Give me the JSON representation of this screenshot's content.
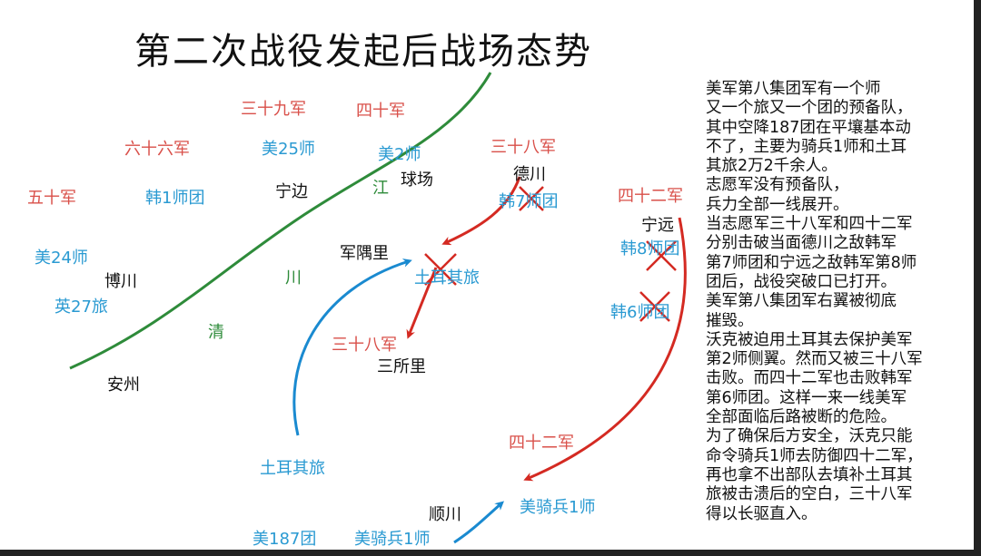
{
  "title": "第二次战役发起后战场态势",
  "colors": {
    "chinese_army": "#d9504a",
    "un_forces": "#2a9ad2",
    "river": "#2e8b3a",
    "red_arrow": "#d42a22",
    "blue_arrow": "#1a8ad0"
  },
  "labels": {
    "army39": "三十九军",
    "army40": "四十军",
    "army66": "六十六军",
    "army50": "五十军",
    "army38_north": "三十八军",
    "army42_north": "四十二军",
    "army38_south": "三十八军",
    "army42_south": "四十二军",
    "us25": "美25师",
    "us2": "美2师",
    "rok1": "韩1师团",
    "us24": "美24师",
    "uk27": "英27旅",
    "rok7": "韩7师团",
    "rok8": "韩8师团",
    "rok6": "韩6师团",
    "turkey_north": "土耳其旅",
    "turkey_south": "土耳其旅",
    "uscav1_east": "美骑兵1师",
    "uscav1_south": "美骑兵1师",
    "us187": "美187团",
    "ningbian": "宁边",
    "qiuchang": "球场",
    "deokcheon": "德川",
    "ningyuan": "宁远",
    "junyuli": "军隅里",
    "bochuan": "博川",
    "anzhou": "安州",
    "sansuoli": "三所里",
    "shunchuan": "顺川",
    "river_1": "清",
    "river_2": "川",
    "river_3": "江"
  },
  "notes": [
    "美军第八集团军有一个师",
    "又一个旅又一个团的预备队，",
    "其中空降187团在平壤基本动",
    "不了，主要为骑兵1师和土耳",
    "其旅2万2千余人。",
    "志愿军没有预备队，",
    "兵力全部一线展开。",
    "当志愿军三十八军和四十二军",
    "分别击破当面德川之敌韩军",
    "第7师团和宁远之敌韩军第8师",
    "团后，战役突破口已打开。",
    "美军第八集团军右翼被彻底",
    "摧毁。",
    "沃克被迫用土耳其去保护美军",
    "第2师侧翼。然而又被三十八军",
    "击败。而四十二军也击败韩军",
    "第6师团。这样一来一线美军",
    "全部面临后路被断的危险。",
    "为了确保后方安全，沃克只能",
    "命令骑兵1师去防御四十二军，",
    "再也拿不出部队去填补土耳其",
    "旅被击溃后的空白，三十八军",
    "得以长驱直入。"
  ]
}
